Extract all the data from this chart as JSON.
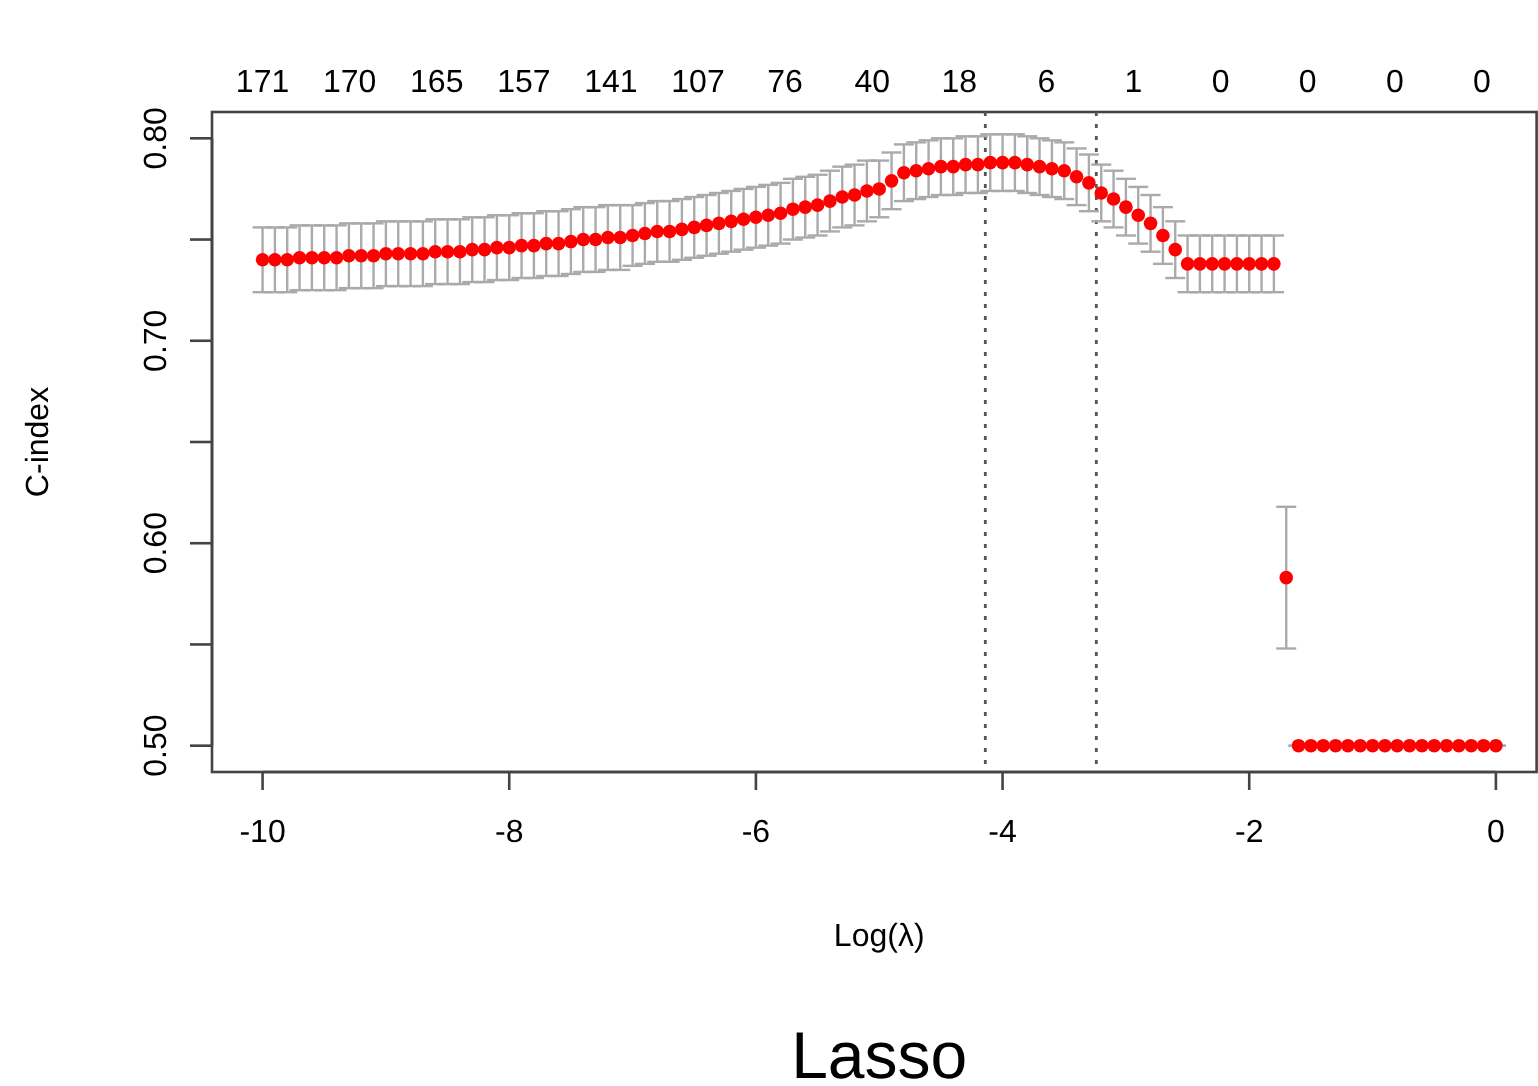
{
  "chart_data": {
    "type": "scatter",
    "title": "Lasso",
    "xlabel": "Log(λ)",
    "ylabel": "C-index",
    "marker": "circle",
    "grid": false,
    "xlim": [
      -10.41,
      0.33
    ],
    "xticks": [
      -10,
      -8,
      -6,
      -4,
      -2,
      0
    ],
    "ylim": [
      0.487,
      0.813
    ],
    "yticks": [
      {
        "value": 0.5,
        "label": "0.50"
      },
      {
        "value": 0.55,
        "label": null
      },
      {
        "value": 0.6,
        "label": "0.60"
      },
      {
        "value": 0.65,
        "label": null
      },
      {
        "value": 0.7,
        "label": "0.70"
      },
      {
        "value": 0.75,
        "label": null
      },
      {
        "value": 0.8,
        "label": "0.80"
      }
    ],
    "annotations": [
      "171",
      "170",
      "165",
      "157",
      "141",
      "107",
      "76",
      "40",
      "18",
      "6",
      "1",
      "0",
      "0",
      "0",
      "0"
    ],
    "ref_lines": [
      {
        "axis": "x",
        "value": -4.14,
        "line_style": "dotted",
        "color": "#555555"
      },
      {
        "axis": "x",
        "value": -3.24,
        "line_style": "dotted",
        "color": "#555555"
      }
    ],
    "series": [
      {
        "color": "#ff0000",
        "x": [
          -10,
          -9.9,
          -9.8,
          -9.7,
          -9.6,
          -9.5,
          -9.4,
          -9.3,
          -9.2,
          -9.1,
          -9,
          -8.9,
          -8.8,
          -8.7,
          -8.6,
          -8.5,
          -8.4,
          -8.3,
          -8.2,
          -8.1,
          -8,
          -7.9,
          -7.8,
          -7.7,
          -7.6,
          -7.5,
          -7.4,
          -7.3,
          -7.2,
          -7.1,
          -7,
          -6.9,
          -6.8,
          -6.7,
          -6.6,
          -6.5,
          -6.4,
          -6.3,
          -6.2,
          -6.1,
          -6,
          -5.9,
          -5.8,
          -5.7,
          -5.6,
          -5.5,
          -5.4,
          -5.3,
          -5.2,
          -5.1,
          -5,
          -4.9,
          -4.8,
          -4.7,
          -4.6,
          -4.5,
          -4.4,
          -4.3,
          -4.2,
          -4.1,
          -4,
          -3.9,
          -3.8,
          -3.7,
          -3.6,
          -3.5,
          -3.4,
          -3.3,
          -3.2,
          -3.1,
          -3,
          -2.9,
          -2.8,
          -2.7,
          -2.6,
          -2.5,
          -2.4,
          -2.3,
          -2.2,
          -2.1,
          -2,
          -1.9,
          -1.8,
          -1.7,
          -1.6,
          -1.5,
          -1.4,
          -1.3,
          -1.2,
          -1.1,
          -1,
          -0.9,
          -0.8,
          -0.7,
          -0.6,
          -0.5,
          -0.4,
          -0.3,
          -0.2,
          -0.1,
          0
        ],
        "values": [
          0.74,
          0.74,
          0.74,
          0.741,
          0.741,
          0.741,
          0.741,
          0.742,
          0.742,
          0.742,
          0.743,
          0.743,
          0.743,
          0.743,
          0.744,
          0.744,
          0.744,
          0.745,
          0.745,
          0.746,
          0.746,
          0.747,
          0.747,
          0.748,
          0.748,
          0.749,
          0.75,
          0.75,
          0.751,
          0.751,
          0.752,
          0.753,
          0.754,
          0.754,
          0.755,
          0.756,
          0.757,
          0.758,
          0.759,
          0.76,
          0.761,
          0.762,
          0.763,
          0.765,
          0.766,
          0.767,
          0.769,
          0.771,
          0.772,
          0.774,
          0.775,
          0.779,
          0.783,
          0.784,
          0.785,
          0.786,
          0.786,
          0.787,
          0.787,
          0.788,
          0.788,
          0.788,
          0.787,
          0.786,
          0.785,
          0.784,
          0.781,
          0.778,
          0.773,
          0.77,
          0.766,
          0.762,
          0.758,
          0.752,
          0.745,
          0.738,
          0.738,
          0.738,
          0.738,
          0.738,
          0.738,
          0.738,
          0.738,
          0.583,
          0.5,
          0.5,
          0.5,
          0.5,
          0.5,
          0.5,
          0.5,
          0.5,
          0.5,
          0.5,
          0.5,
          0.5,
          0.5,
          0.5,
          0.5,
          0.5,
          0.5
        ],
        "errors": [
          0.016,
          0.016,
          0.016,
          0.016,
          0.016,
          0.016,
          0.016,
          0.016,
          0.016,
          0.016,
          0.016,
          0.016,
          0.016,
          0.016,
          0.016,
          0.016,
          0.016,
          0.016,
          0.016,
          0.016,
          0.016,
          0.016,
          0.016,
          0.016,
          0.016,
          0.016,
          0.016,
          0.016,
          0.016,
          0.016,
          0.015,
          0.015,
          0.015,
          0.015,
          0.015,
          0.015,
          0.015,
          0.015,
          0.015,
          0.015,
          0.015,
          0.015,
          0.015,
          0.015,
          0.015,
          0.015,
          0.015,
          0.015,
          0.015,
          0.015,
          0.014,
          0.014,
          0.014,
          0.014,
          0.014,
          0.014,
          0.014,
          0.014,
          0.014,
          0.014,
          0.014,
          0.014,
          0.014,
          0.014,
          0.014,
          0.014,
          0.014,
          0.014,
          0.014,
          0.014,
          0.014,
          0.014,
          0.014,
          0.014,
          0.014,
          0.014,
          0.014,
          0.014,
          0.014,
          0.014,
          0.014,
          0.014,
          0.014,
          0.035,
          0,
          0,
          0,
          0,
          0,
          0,
          0,
          0,
          0,
          0,
          0,
          0,
          0,
          0,
          0,
          0,
          0
        ]
      }
    ]
  }
}
